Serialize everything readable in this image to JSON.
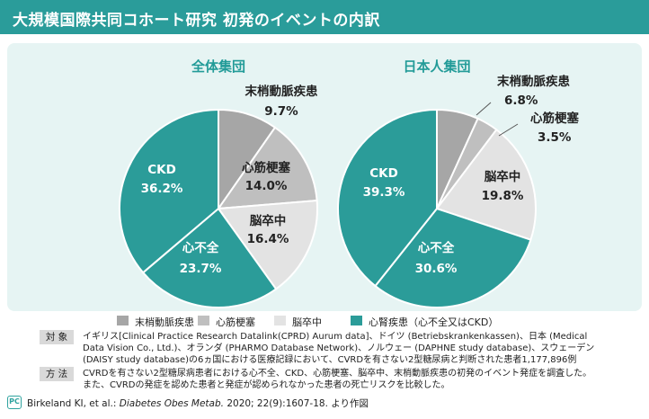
{
  "header": {
    "title": "大規模国際共同コホート研究 初発のイベントの内訳"
  },
  "chart_data": [
    {
      "type": "pie",
      "title": "全体集団",
      "slices": [
        {
          "label": "末梢動脈疾患",
          "value": 9.7,
          "text": "9.7%",
          "color": "#a6a6a6"
        },
        {
          "label": "心筋梗塞",
          "value": 14.0,
          "text": "14.0%",
          "color": "#bfbfbf"
        },
        {
          "label": "脳卒中",
          "value": 16.4,
          "text": "16.4%",
          "color": "#e3e3e3"
        },
        {
          "label": "心不全",
          "value": 23.7,
          "text": "23.7%",
          "color": "#2b9c99"
        },
        {
          "label": "CKD",
          "value": 36.2,
          "text": "36.2%",
          "color": "#2b9c99"
        }
      ]
    },
    {
      "type": "pie",
      "title": "日本人集団",
      "slices": [
        {
          "label": "末梢動脈疾患",
          "value": 6.8,
          "text": "6.8%",
          "color": "#a6a6a6"
        },
        {
          "label": "心筋梗塞",
          "value": 3.5,
          "text": "3.5%",
          "color": "#bfbfbf"
        },
        {
          "label": "脳卒中",
          "value": 19.8,
          "text": "19.8%",
          "color": "#e3e3e3"
        },
        {
          "label": "心不全",
          "value": 30.6,
          "text": "30.6%",
          "color": "#2b9c99"
        },
        {
          "label": "CKD",
          "value": 39.3,
          "text": "39.3%",
          "color": "#2b9c99"
        }
      ]
    }
  ],
  "legend": [
    {
      "label": "末梢動脈疾患",
      "color": "#a6a6a6"
    },
    {
      "label": "心筋梗塞",
      "color": "#bfbfbf"
    },
    {
      "label": "脳卒中",
      "color": "#e3e3e3"
    },
    {
      "label": "心腎疾患（心不全又はCKD）",
      "color": "#2b9c99"
    }
  ],
  "info": {
    "subjects_tag": "対 象",
    "subjects_lines": [
      "イギリス[Clinical Practice Research Datalink(CPRD) Aurum data]、ドイツ (Betriebskrankenkassen)、日本 (Medical",
      "Data Vision Co., Ltd.)、オランダ (PHARMO Database Network)、ノルウェー (DAPHNE study database)、スウェーデン",
      "(DAISY study database)の6ヵ国における医療記録において、CVRDを有さない2型糖尿病と判断された患者1,177,896例"
    ],
    "method_tag": "方 法",
    "method_lines": [
      "CVRDを有さない2型糖尿病患者における心不全、CKD、心筋梗塞、脳卒中、末梢動脈疾患の初発のイベント発症を調査した。",
      "また、CVRDの発症を認めた患者と発症が認められなかった患者の死亡リスクを比較した。"
    ]
  },
  "citation": {
    "icon_text": "PC",
    "authors": "Birkeland KI, et al.:",
    "journal": "Diabetes Obes Metab.",
    "details": "2020; 22(9):1607-18. より作図"
  }
}
